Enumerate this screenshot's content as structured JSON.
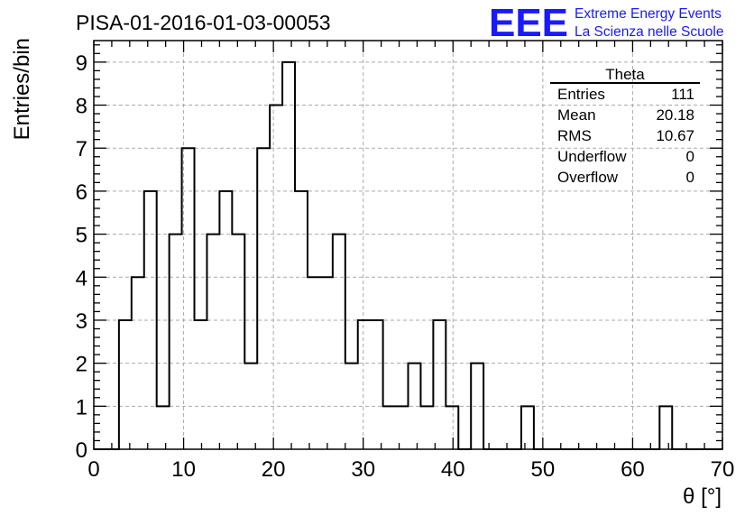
{
  "header": {
    "run_title": "PISA-01-2016-01-03-00053",
    "logo_text": "EEE",
    "brand_line1": "Extreme Energy Events",
    "brand_line2": "La Scienza nelle Scuole",
    "brand_color": "#1a1aff"
  },
  "stats_box": {
    "title": "Theta",
    "rows": [
      {
        "label": "Entries",
        "value": "111"
      },
      {
        "label": "Mean",
        "value": "20.18"
      },
      {
        "label": "RMS",
        "value": "10.67"
      },
      {
        "label": "Underflow",
        "value": "0"
      },
      {
        "label": "Overflow",
        "value": "0"
      }
    ]
  },
  "chart_data": {
    "type": "bar",
    "style": "step-histogram",
    "xlabel": "θ [°]",
    "ylabel": "Entries/bin",
    "xlim": [
      0,
      70
    ],
    "ylim": [
      0,
      9.5
    ],
    "x_ticks": [
      0,
      10,
      20,
      30,
      40,
      50,
      60,
      70
    ],
    "y_ticks": [
      0,
      1,
      2,
      3,
      4,
      5,
      6,
      7,
      8,
      9
    ],
    "grid": true,
    "bin_start": 0,
    "bin_width": 1.4,
    "values": [
      0,
      0,
      3,
      4,
      6,
      1,
      5,
      7,
      3,
      5,
      6,
      5,
      2,
      7,
      8,
      9,
      6,
      4,
      4,
      5,
      2,
      3,
      3,
      1,
      1,
      2,
      1,
      3,
      1,
      0,
      2,
      0,
      0,
      0,
      1,
      0,
      0,
      0,
      0,
      0,
      0,
      0,
      0,
      0,
      0,
      1,
      0,
      0,
      0,
      0
    ]
  }
}
